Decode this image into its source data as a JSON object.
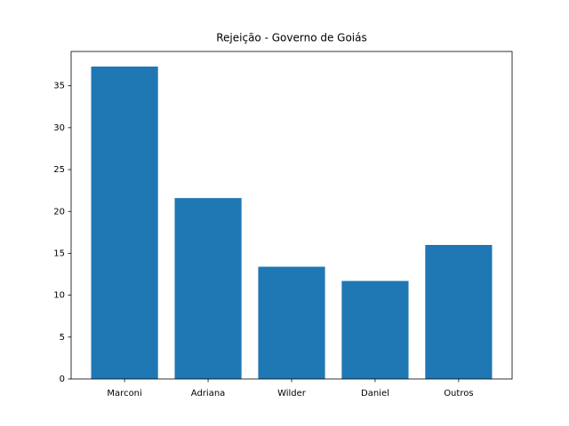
{
  "chart_data": {
    "type": "bar",
    "title": "Rejeição - Governo de Goiás",
    "categories": [
      "Marconi",
      "Adriana",
      "Wilder",
      "Daniel",
      "Outros"
    ],
    "values": [
      37.3,
      21.6,
      13.4,
      11.7,
      16.0
    ],
    "color": "#1f77b4",
    "ylim": [
      0,
      39.1
    ],
    "yticks": [
      0,
      5,
      10,
      15,
      20,
      25,
      30,
      35
    ],
    "grid": false
  }
}
